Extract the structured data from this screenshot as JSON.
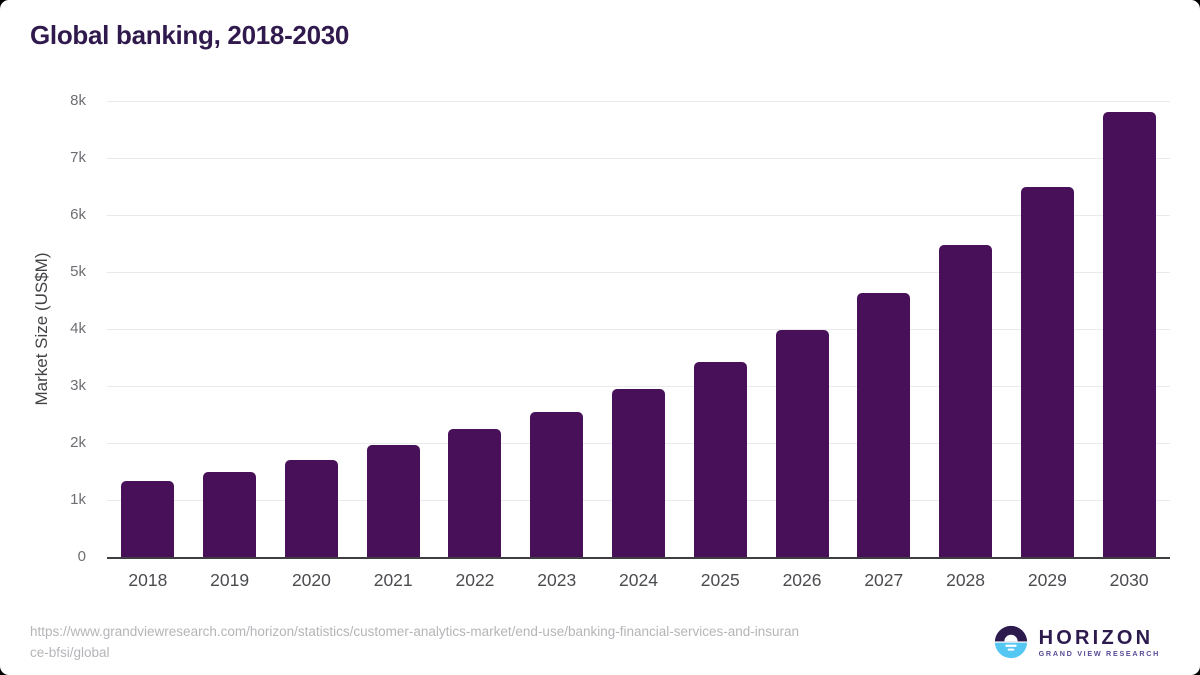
{
  "header": {
    "title": "Global banking, 2018-2030"
  },
  "chart_data": {
    "type": "bar",
    "title": "Global banking, 2018-2030",
    "categories": [
      "2018",
      "2019",
      "2020",
      "2021",
      "2022",
      "2023",
      "2024",
      "2025",
      "2026",
      "2027",
      "2028",
      "2029",
      "2030"
    ],
    "values": [
      1330,
      1500,
      1710,
      1960,
      2240,
      2550,
      2940,
      3420,
      3980,
      4640,
      5470,
      6500,
      7800
    ],
    "unit": "US$M",
    "xlabel": "",
    "ylabel": "Market Size (US$M)",
    "ylim": [
      0,
      8000
    ],
    "ytick_labels": [
      "0",
      "1k",
      "2k",
      "3k",
      "4k",
      "5k",
      "6k",
      "7k",
      "8k"
    ],
    "grid": true,
    "legend": "none",
    "bar_color": "#471059"
  },
  "footer": {
    "source_lines": [
      "https://www.grandviewresearch.com/horizon/statistics/customer-analytics-market/end-use/banking-financial-services-and-insuran",
      "ce-bfsi/global"
    ],
    "logo": {
      "name": "HORIZON",
      "tagline": "GRAND VIEW RESEARCH"
    }
  },
  "colors": {
    "bar": "#471059",
    "title": "#301a4d",
    "logo_dark": "#2d1b4e",
    "logo_blue": "#55c7f3",
    "footer_text": "#b5b5b9"
  }
}
